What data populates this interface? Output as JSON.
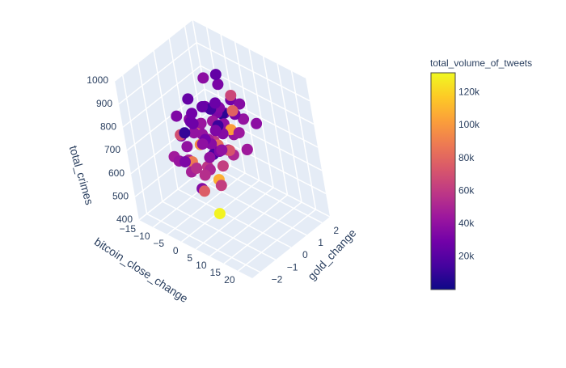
{
  "chart_data": {
    "type": "scatter3d",
    "x_axis": {
      "title": "bitcoin_close_change",
      "range": [
        -15,
        25
      ],
      "ticks": [
        -15,
        -10,
        -5,
        0,
        5,
        10,
        15,
        20
      ],
      "tick_labels": [
        "−15",
        "−10",
        "−5",
        "0",
        "5",
        "10",
        "15",
        "20"
      ]
    },
    "y_axis": {
      "title": "gold_change",
      "range": [
        -2.5,
        2.5
      ],
      "ticks": [
        -2,
        -1,
        0,
        1,
        2
      ],
      "tick_labels": [
        "−2",
        "−1",
        "0",
        "1",
        "2"
      ]
    },
    "z_axis": {
      "title": "total_crimes",
      "range": [
        400,
        1000
      ],
      "ticks": [
        400,
        500,
        600,
        700,
        800,
        900,
        1000
      ],
      "tick_labels": [
        "400",
        "500",
        "600",
        "700",
        "800",
        "900",
        "1000"
      ]
    },
    "color_axis": {
      "title": "total_volume_of_tweets",
      "range": [
        0,
        132000
      ],
      "ticks": [
        20000,
        40000,
        60000,
        80000,
        100000,
        120000
      ],
      "tick_labels": [
        "20k",
        "40k",
        "60k",
        "80k",
        "100k",
        "120k"
      ],
      "colorscale": [
        "#0d0887",
        "#46039f",
        "#7201a8",
        "#9c179e",
        "#bd3786",
        "#d8576b",
        "#ed7953",
        "#fb9f3a",
        "#fdca26",
        "#f0f921"
      ]
    },
    "points": [
      [
        1.2,
        0.4,
        740,
        38000
      ],
      [
        -2.5,
        0.1,
        710,
        42000
      ],
      [
        3.1,
        -0.6,
        760,
        30000
      ],
      [
        0.4,
        0.9,
        800,
        35000
      ],
      [
        5.2,
        0.3,
        680,
        45000
      ],
      [
        -4.1,
        -0.2,
        770,
        28000
      ],
      [
        2.0,
        1.2,
        690,
        52000
      ],
      [
        -1.0,
        -1.1,
        730,
        40000
      ],
      [
        6.5,
        -0.4,
        720,
        33000
      ],
      [
        0.0,
        0.0,
        850,
        26000
      ],
      [
        -3.2,
        0.8,
        640,
        60000
      ],
      [
        4.4,
        1.5,
        810,
        36000
      ],
      [
        1.8,
        -1.5,
        660,
        48000
      ],
      [
        -6.0,
        0.5,
        700,
        31000
      ],
      [
        7.8,
        0.7,
        750,
        44000
      ],
      [
        -0.8,
        1.8,
        780,
        29000
      ],
      [
        2.7,
        -0.9,
        620,
        55000
      ],
      [
        -5.1,
        -0.8,
        820,
        34000
      ],
      [
        3.9,
        0.2,
        880,
        27000
      ],
      [
        0.9,
        -0.3,
        600,
        50000
      ],
      [
        -2.0,
        1.4,
        860,
        32000
      ],
      [
        5.9,
        -1.2,
        790,
        39000
      ],
      [
        -1.6,
        -0.5,
        900,
        25000
      ],
      [
        8.4,
        0.9,
        670,
        47000
      ],
      [
        -7.2,
        0.2,
        740,
        37000
      ],
      [
        1.5,
        2.0,
        700,
        41000
      ],
      [
        4.8,
        -0.1,
        630,
        62000
      ],
      [
        -3.8,
        1.1,
        760,
        30000
      ],
      [
        2.3,
        0.6,
        830,
        35000
      ],
      [
        -0.2,
        -1.8,
        710,
        43000
      ],
      [
        6.9,
        1.9,
        720,
        38000
      ],
      [
        -4.6,
        -1.4,
        680,
        46000
      ],
      [
        3.4,
        -2.0,
        740,
        33000
      ],
      [
        0.6,
        1.0,
        940,
        24000
      ],
      [
        -1.9,
        0.0,
        580,
        58000
      ],
      [
        9.5,
        -0.7,
        760,
        40000
      ],
      [
        -8.0,
        -0.3,
        690,
        36000
      ],
      [
        1.0,
        -0.8,
        870,
        29000
      ],
      [
        5.5,
        0.5,
        650,
        52000
      ],
      [
        -2.8,
        1.6,
        720,
        34000
      ],
      [
        2.6,
        1.3,
        780,
        78000
      ],
      [
        -0.5,
        -0.4,
        705,
        95000
      ],
      [
        4.1,
        0.8,
        735,
        102000
      ],
      [
        -3.5,
        -1.0,
        760,
        70000
      ],
      [
        1.4,
        -1.3,
        690,
        88000
      ],
      [
        7.0,
        0.1,
        700,
        72000
      ],
      [
        -1.2,
        0.7,
        640,
        82000
      ],
      [
        3.7,
        -0.3,
        575,
        108000
      ],
      [
        0.2,
        1.7,
        810,
        66000
      ],
      [
        -5.5,
        0.3,
        720,
        92000
      ],
      [
        6.2,
        -1.6,
        610,
        76000
      ],
      [
        2.1,
        0.4,
        760,
        12000
      ],
      [
        -0.9,
        1.2,
        750,
        8000
      ],
      [
        4.6,
        -0.5,
        700,
        15000
      ],
      [
        -2.4,
        -0.9,
        770,
        10000
      ],
      [
        1.7,
        0.2,
        840,
        14000
      ],
      [
        12.0,
        -1.8,
        560,
        130000
      ],
      [
        9.0,
        -1.0,
        620,
        62000
      ],
      [
        10.5,
        0.6,
        700,
        45000
      ],
      [
        -10.0,
        1.0,
        650,
        35000
      ],
      [
        0.3,
        0.3,
        960,
        38000
      ],
      [
        -1.4,
        -0.6,
        520,
        36000
      ],
      [
        2.9,
        1.1,
        690,
        42000
      ],
      [
        -3.0,
        0.6,
        800,
        30000
      ],
      [
        3.3,
        -1.4,
        680,
        55000
      ],
      [
        0.8,
        -0.1,
        720,
        48000
      ],
      [
        -0.3,
        0.5,
        760,
        44000
      ],
      [
        1.1,
        0.9,
        735,
        39000
      ],
      [
        -2.2,
        -0.4,
        745,
        41000
      ],
      [
        2.4,
        -0.2,
        715,
        37000
      ],
      [
        0.5,
        0.7,
        790,
        33000
      ],
      [
        -1.7,
        0.9,
        700,
        46000
      ],
      [
        3.6,
        0.0,
        770,
        34000
      ],
      [
        -0.6,
        -1.2,
        680,
        50000
      ],
      [
        1.9,
        1.5,
        750,
        31000
      ],
      [
        -4.3,
        0.4,
        730,
        43000
      ],
      [
        5.0,
        -0.8,
        705,
        39000
      ],
      [
        0.1,
        -0.7,
        815,
        28000
      ],
      [
        -2.9,
        1.3,
        685,
        47000
      ],
      [
        2.8,
        0.5,
        725,
        36000
      ]
    ]
  }
}
